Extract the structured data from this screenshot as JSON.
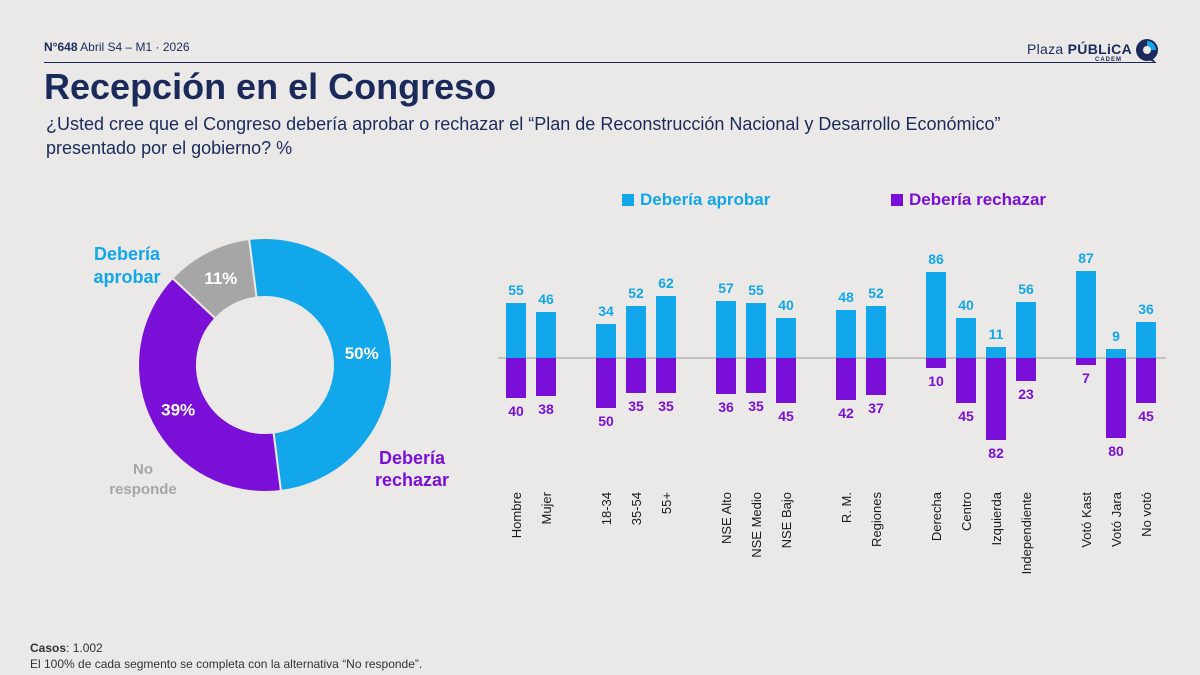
{
  "header": {
    "issue_number": "N°648",
    "issue_rest": " Abril S4 – M1 · 2026",
    "brand_prefix": "Plaza ",
    "brand_bold": "PÚBLiCA",
    "brand_sub": "CADEM"
  },
  "title": "Recepción en el Congreso",
  "subtitle": "¿Usted cree que el Congreso debería aprobar o rechazar el “Plan de Reconstrucción Nacional y Desarrollo Económico” presentado por el gobierno? %",
  "colors": {
    "aprobar": "#12a6ea",
    "rechazar": "#7a10d8",
    "no_responde": "#a6a6a6",
    "navy": "#1b2a5b"
  },
  "legend": {
    "aprobar": "Debería aprobar",
    "rechazar": "Debería rechazar"
  },
  "donut": {
    "label_aprobar_1": "Debería",
    "label_aprobar_2": "aprobar",
    "label_rechazar_1": "Debería",
    "label_rechazar_2": "rechazar",
    "label_no_1": "No",
    "label_no_2": "responde"
  },
  "footer": {
    "casos_label": "Casos",
    "casos_value": ": 1.002",
    "note": "El 100% de cada segmento se completa con la alternativa “No responde”."
  },
  "chart_data": [
    {
      "type": "pie",
      "labels": [
        "Debería aprobar",
        "Debería rechazar",
        "No responde"
      ],
      "values": [
        50,
        39,
        11
      ],
      "value_labels": [
        "50%",
        "39%",
        "11%"
      ]
    },
    {
      "type": "bar",
      "categories": [
        "Hombre",
        "Mujer",
        "18-34",
        "35-54",
        "55+",
        "NSE Alto",
        "NSE Medio",
        "NSE Bajo",
        "R. M.",
        "Regiones",
        "Derecha",
        "Centro",
        "Izquierda",
        "Independiente",
        "Votó Kast",
        "Votó Jara",
        "No votó"
      ],
      "groups": [
        [
          0,
          1
        ],
        [
          2,
          3,
          4
        ],
        [
          5,
          6,
          7
        ],
        [
          8,
          9
        ],
        [
          10,
          11,
          12,
          13
        ],
        [
          14,
          15,
          16
        ]
      ],
      "series": [
        {
          "name": "Debería aprobar",
          "values": [
            55,
            46,
            34,
            52,
            62,
            57,
            55,
            40,
            48,
            52,
            86,
            40,
            11,
            56,
            87,
            9,
            36
          ]
        },
        {
          "name": "Debería rechazar",
          "values": [
            40,
            38,
            50,
            35,
            35,
            36,
            35,
            45,
            42,
            37,
            10,
            45,
            82,
            23,
            7,
            80,
            45
          ]
        }
      ],
      "legend_position": "top",
      "grid": false
    }
  ]
}
